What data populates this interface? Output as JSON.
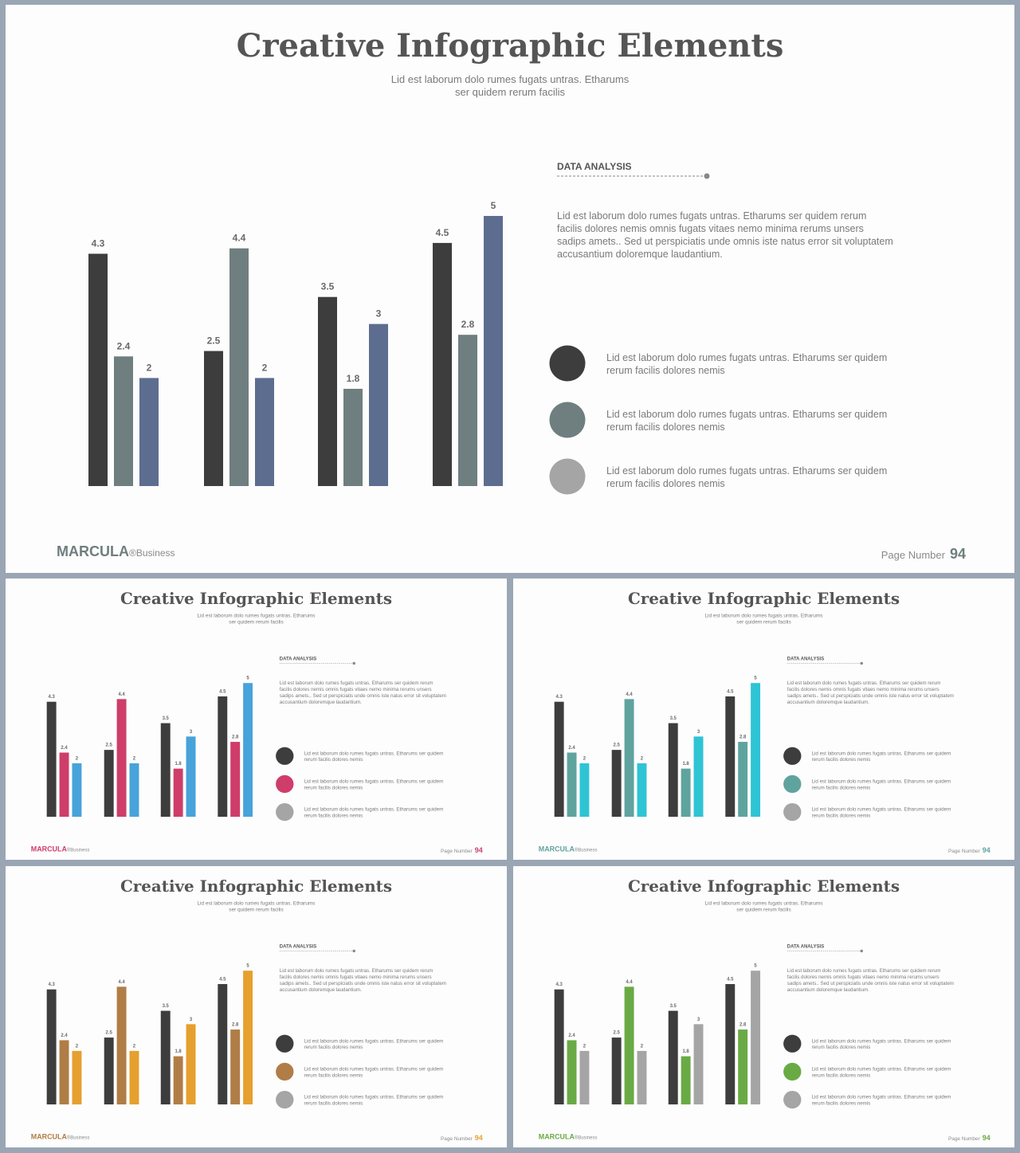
{
  "slide": {
    "title": "Creative Infographic Elements",
    "subtitle_line1": "Lid est laborum dolo rumes fugats untras. Etharums",
    "subtitle_line2": "ser quidem rerum facilis",
    "section_label": "DATA ANALYSIS",
    "paragraph_lines": [
      "Lid est laborum dolo rumes fugats untras. Etharums ser quidem rerum",
      "facilis dolores nemis omnis fugats vitaes nemo minima rerums unsers",
      "sadips amets.. Sed ut perspiciatis unde omnis iste natus error sit voluptatem",
      "accusantium doloremque laudantium."
    ],
    "legend_items": [
      {
        "line1": "Lid est laborum dolo rumes fugats untras. Etharums ser quidem",
        "line2": "rerum facilis dolores nemis"
      },
      {
        "line1": "Lid est laborum dolo rumes fugats untras. Etharums ser quidem",
        "line2": "rerum facilis dolores nemis"
      },
      {
        "line1": "Lid est laborum dolo rumes fugats untras. Etharums ser quidem",
        "line2": "rerum facilis dolores nemis"
      }
    ],
    "brand_name": "MARCULA",
    "brand_suffix": "®Business",
    "page_label": "Page Number",
    "page_number": "94"
  },
  "variants": [
    {
      "series_colors": [
        "#3d3d3d",
        "#6f7e7e",
        "#5d6d8f"
      ],
      "legend_colors": [
        "#3d3d3d",
        "#6f7e7e",
        "#a5a5a5"
      ],
      "brand_color": "#6f7e7e",
      "page_color": "#6f7e7e"
    },
    {
      "series_colors": [
        "#3d3d3d",
        "#cf3d6a",
        "#47a3da"
      ],
      "legend_colors": [
        "#3d3d3d",
        "#cf3d6a",
        "#a5a5a5"
      ],
      "brand_color": "#cf3d6a",
      "page_color": "#cf3d6a"
    },
    {
      "series_colors": [
        "#3d3d3d",
        "#5fa39f",
        "#2ec4d4"
      ],
      "legend_colors": [
        "#3d3d3d",
        "#5fa39f",
        "#a5a5a5"
      ],
      "brand_color": "#5fa39f",
      "page_color": "#5fa39f"
    },
    {
      "series_colors": [
        "#3d3d3d",
        "#b07d46",
        "#e6a02e"
      ],
      "legend_colors": [
        "#3d3d3d",
        "#b07d46",
        "#a5a5a5"
      ],
      "brand_color": "#b07d46",
      "page_color": "#e6a02e"
    },
    {
      "series_colors": [
        "#3d3d3d",
        "#6aaa45",
        "#a5a5a5"
      ],
      "legend_colors": [
        "#3d3d3d",
        "#6aaa45",
        "#a5a5a5"
      ],
      "brand_color": "#6aaa45",
      "page_color": "#6aaa45"
    }
  ],
  "chart_data": {
    "type": "bar",
    "categories": [
      "",
      "",
      "",
      ""
    ],
    "series": [
      {
        "values": [
          4.3,
          2.5,
          3.5,
          4.5
        ]
      },
      {
        "values": [
          2.4,
          4.4,
          1.8,
          2.8
        ]
      },
      {
        "values": [
          2,
          2,
          3,
          5
        ]
      }
    ],
    "ylim": [
      0,
      5
    ],
    "grid": false,
    "data_labels": true
  }
}
